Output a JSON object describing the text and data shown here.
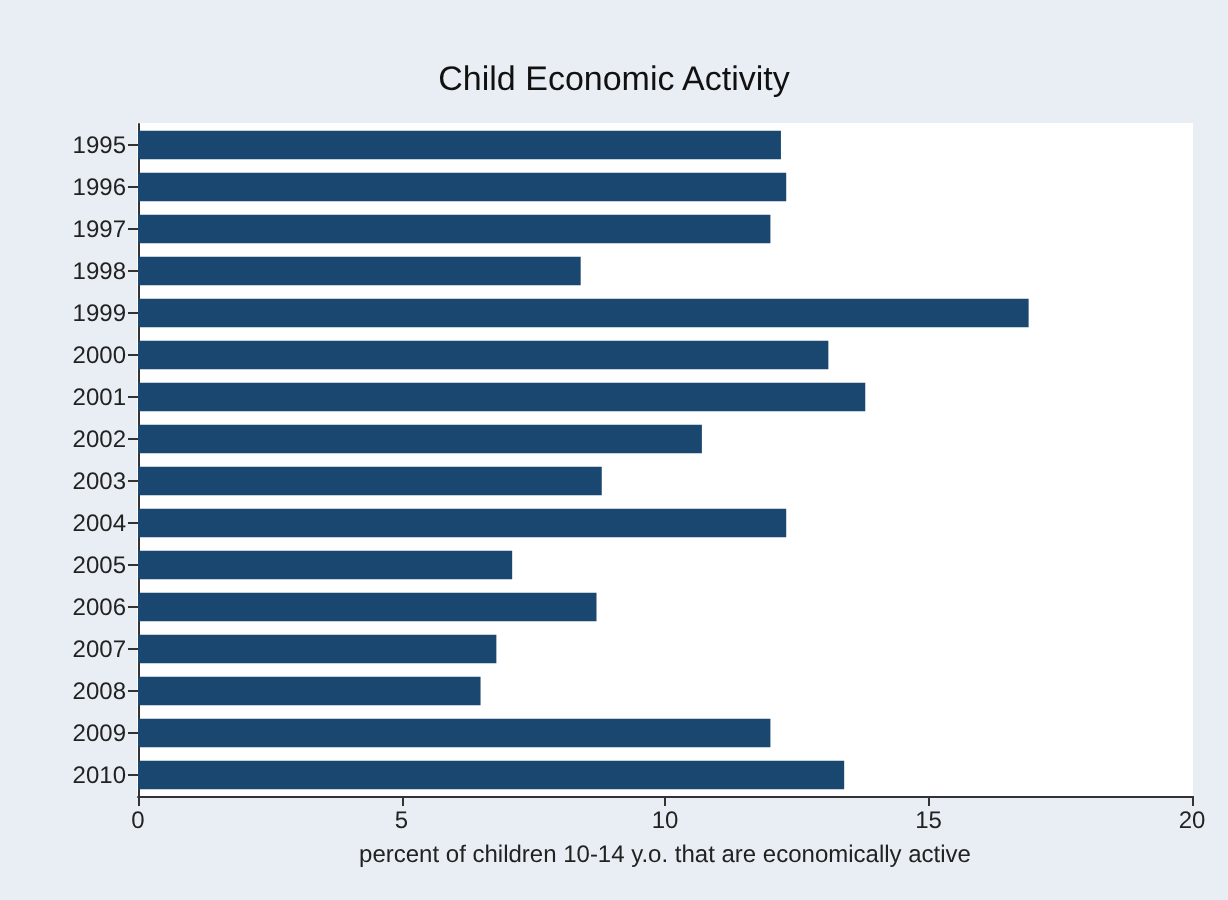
{
  "chart_data": {
    "type": "bar",
    "orientation": "horizontal",
    "title": "Child Economic Activity",
    "xlabel": "percent of children 10-14 y.o. that are economically active",
    "categories": [
      "1995",
      "1996",
      "1997",
      "1998",
      "1999",
      "2000",
      "2001",
      "2002",
      "2003",
      "2004",
      "2005",
      "2006",
      "2007",
      "2008",
      "2009",
      "2010"
    ],
    "values": [
      12.2,
      12.3,
      12.0,
      8.4,
      16.9,
      13.1,
      13.8,
      10.7,
      8.8,
      12.3,
      7.1,
      8.7,
      6.8,
      6.5,
      12.0,
      13.4
    ],
    "color": "#1a476f",
    "xlim": [
      0,
      20
    ],
    "xticks": [
      0,
      5,
      10,
      15,
      20
    ],
    "grid": false
  }
}
